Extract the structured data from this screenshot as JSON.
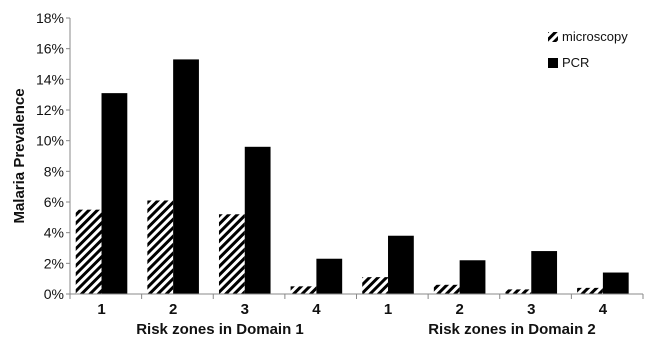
{
  "chart_data": {
    "type": "bar",
    "ylabel": "Malaria Prevalence",
    "ylim": [
      0,
      18
    ],
    "yticks": [
      "0%",
      "2%",
      "4%",
      "6%",
      "8%",
      "10%",
      "12%",
      "14%",
      "16%",
      "18%"
    ],
    "grid": false,
    "legend_position": "top-right",
    "groups": [
      {
        "label": "Risk zones in Domain 1",
        "categories": [
          "1",
          "2",
          "3",
          "4"
        ]
      },
      {
        "label": "Risk zones in Domain 2",
        "categories": [
          "1",
          "2",
          "3",
          "4"
        ]
      }
    ],
    "series": [
      {
        "name": "microscopy",
        "style": "hatched",
        "color": "#000000",
        "values": [
          5.5,
          6.1,
          5.2,
          0.5,
          1.1,
          0.6,
          0.3,
          0.4
        ]
      },
      {
        "name": "PCR",
        "style": "solid",
        "color": "#000000",
        "values": [
          13.1,
          15.3,
          9.6,
          2.3,
          3.8,
          2.2,
          2.8,
          1.4
        ]
      }
    ]
  }
}
